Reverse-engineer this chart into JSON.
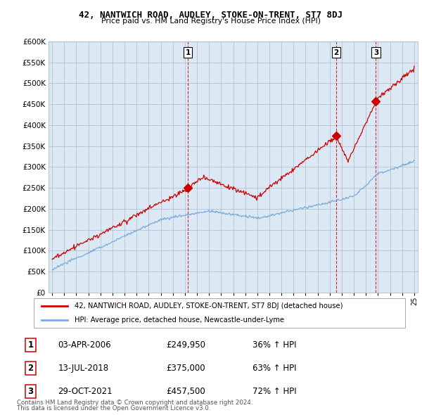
{
  "title": "42, NANTWICH ROAD, AUDLEY, STOKE-ON-TRENT, ST7 8DJ",
  "subtitle": "Price paid vs. HM Land Registry's House Price Index (HPI)",
  "legend_line1": "42, NANTWICH ROAD, AUDLEY, STOKE-ON-TRENT, ST7 8DJ (detached house)",
  "legend_line2": "HPI: Average price, detached house, Newcastle-under-Lyme",
  "footer1": "Contains HM Land Registry data © Crown copyright and database right 2024.",
  "footer2": "This data is licensed under the Open Government Licence v3.0.",
  "transactions": [
    {
      "num": 1,
      "date": "03-APR-2006",
      "price": "£249,950",
      "change": "36% ↑ HPI"
    },
    {
      "num": 2,
      "date": "13-JUL-2018",
      "price": "£375,000",
      "change": "63% ↑ HPI"
    },
    {
      "num": 3,
      "date": "29-OCT-2021",
      "price": "£457,500",
      "change": "72% ↑ HPI"
    }
  ],
  "transaction_dates_decimal": [
    2006.25,
    2018.54,
    2021.83
  ],
  "transaction_prices": [
    249950,
    375000,
    457500
  ],
  "hpi_color": "#7aaadd",
  "price_color": "#cc0000",
  "vline_color": "#cc0000",
  "chart_bg": "#dde8f5",
  "background_color": "#ffffff",
  "grid_color": "#aabbcc",
  "ylim": [
    0,
    600000
  ],
  "yticks": [
    0,
    50000,
    100000,
    150000,
    200000,
    250000,
    300000,
    350000,
    400000,
    450000,
    500000,
    550000,
    600000
  ],
  "xlim_start": 1994.7,
  "xlim_end": 2025.3,
  "xticks": [
    1995,
    1996,
    1997,
    1998,
    1999,
    2000,
    2001,
    2002,
    2003,
    2004,
    2005,
    2006,
    2007,
    2008,
    2009,
    2010,
    2011,
    2012,
    2013,
    2014,
    2015,
    2016,
    2017,
    2018,
    2019,
    2020,
    2021,
    2022,
    2023,
    2024,
    2025
  ]
}
